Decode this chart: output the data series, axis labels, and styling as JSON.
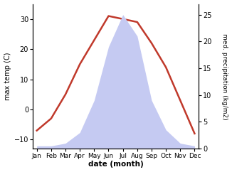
{
  "months": [
    "Jan",
    "Feb",
    "Mar",
    "Apr",
    "May",
    "Jun",
    "Jul",
    "Aug",
    "Sep",
    "Oct",
    "Nov",
    "Dec"
  ],
  "temperature": [
    -7,
    -3,
    5,
    15,
    23,
    31,
    30,
    29,
    22,
    14,
    3,
    -8
  ],
  "precipitation": [
    0.5,
    0.5,
    1.0,
    3.0,
    9.0,
    19.0,
    25.0,
    21.0,
    9.0,
    3.5,
    1.0,
    0.5
  ],
  "temp_color": "#c0392b",
  "precip_fill_color": "#c5caf2",
  "xlabel": "date (month)",
  "ylabel_left": "max temp (C)",
  "ylabel_right": "med. precipitation (kg/m2)",
  "temp_ylim": [
    -13,
    35
  ],
  "precip_ylim": [
    0,
    27
  ],
  "temp_yticks": [
    -10,
    0,
    10,
    20,
    30
  ],
  "precip_yticks": [
    0,
    5,
    10,
    15,
    20,
    25
  ],
  "background_color": "#ffffff",
  "line_width": 1.8,
  "figsize": [
    3.26,
    2.42
  ],
  "dpi": 100
}
